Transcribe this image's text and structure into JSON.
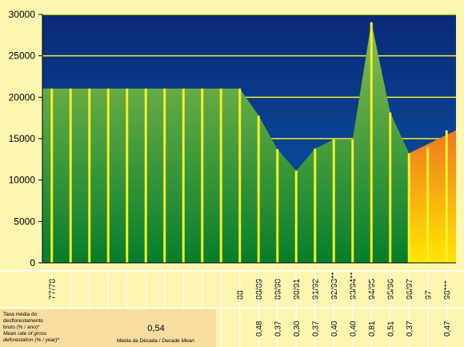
{
  "chart_data": {
    "type": "area",
    "categories": [
      "77/78",
      "",
      "",
      "",
      "",
      "",
      "",
      "",
      "",
      "",
      "88",
      "88/89",
      "89/90",
      "90/91",
      "91/92",
      "92/93**",
      "93/94**",
      "94/95",
      "95/96",
      "96/97",
      "97",
      "98***"
    ],
    "values": [
      21050,
      21050,
      21050,
      21050,
      21050,
      21050,
      21050,
      21050,
      21050,
      21050,
      21050,
      17770,
      13730,
      11130,
      13790,
      14900,
      14900,
      29060,
      18160,
      13230,
      14000,
      16000
    ],
    "ylim": [
      0,
      30000
    ],
    "yticks": [
      0,
      5000,
      10000,
      15000,
      20000,
      25000,
      30000
    ],
    "grid": true,
    "colors": {
      "sky_top": "#0a2a78",
      "sky_bottom": "#0a5aaa",
      "area_top": "#8cbc50",
      "area_bottom": "#067e2c",
      "bars": "#f4f02c",
      "highlight_top": "#f07820",
      "highlight_bottom": "#ffe800",
      "panel": "#fdf6b0"
    },
    "rate_table": {
      "label_pt": [
        "Taxa média do",
        "desflorestamento",
        "bruto (% / ano)*"
      ],
      "label_en": [
        "Mean rate of gross",
        "deforestation (% / year)*"
      ],
      "decade_mean_value": "0,54",
      "decade_mean_label_pt": "Média da Década /",
      "decade_mean_label_en": "Decade Mean",
      "rates": [
        "0,48",
        "0,37",
        "0,30",
        "0,37",
        "0,40",
        "0,40",
        "0,81",
        "0,51",
        "0,37",
        "0,47"
      ]
    }
  }
}
